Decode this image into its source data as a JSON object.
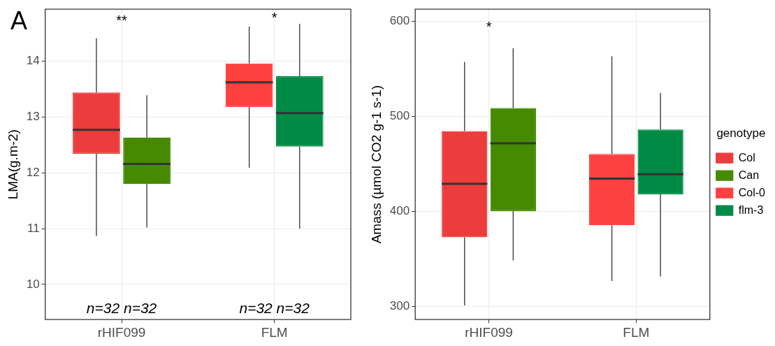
{
  "chart_data": [
    {
      "type": "box",
      "ylabel": "LMA(g.m-2)",
      "categories": [
        "rHIF099",
        "FLM"
      ],
      "ylim": [
        9.37,
        14.93
      ],
      "yticks": [
        10,
        11,
        12,
        13,
        14
      ],
      "grid": true,
      "legend": false,
      "series": [
        {
          "color": "#ec3c3c",
          "boxes": [
            {
              "low": 10.87,
              "q1": 12.34,
              "median": 12.77,
              "q3": 13.44,
              "high": 14.41
            },
            null
          ]
        },
        {
          "color": "#458a00",
          "boxes": [
            {
              "low": 11.02,
              "q1": 11.8,
              "median": 12.16,
              "q3": 12.63,
              "high": 13.39
            },
            null
          ]
        },
        {
          "color": "#ff4040",
          "boxes": [
            null,
            {
              "low": 12.09,
              "q1": 13.18,
              "median": 13.62,
              "q3": 13.96,
              "high": 14.62
            }
          ]
        },
        {
          "color": "#008b45",
          "boxes": [
            null,
            {
              "low": 11.0,
              "q1": 12.47,
              "median": 13.07,
              "q3": 13.73,
              "high": 14.67
            }
          ]
        }
      ],
      "annotations": [
        "A",
        "**",
        "*",
        "n=32 n=32",
        "n=32 n=32"
      ]
    },
    {
      "type": "box",
      "ylabel": "Amass (µmol CO2 g-1 s-1)",
      "categories": [
        "rHIF099",
        "FLM"
      ],
      "ylim": [
        285.9,
        612.7
      ],
      "yticks": [
        300,
        400,
        500,
        600
      ],
      "grid": true,
      "legend": "right",
      "legend_title": "genotype",
      "series": [
        {
          "name": "Col",
          "color": "#ec3c3c",
          "boxes": [
            {
              "low": 300.8,
              "q1": 372.5,
              "median": 428.9,
              "q3": 484.4,
              "high": 557.2
            },
            null
          ]
        },
        {
          "name": "Can",
          "color": "#458a00",
          "boxes": [
            {
              "low": 348.2,
              "q1": 400.2,
              "median": 471.6,
              "q3": 508.7,
              "high": 571.6
            },
            null
          ]
        },
        {
          "name": "Col-0",
          "color": "#ff4040",
          "boxes": [
            null,
            {
              "low": 326.5,
              "q1": 385.3,
              "median": 434.3,
              "q3": 460.3,
              "high": 563.2
            }
          ]
        },
        {
          "name": "flm-3",
          "color": "#008b45",
          "boxes": [
            null,
            {
              "low": 331.4,
              "q1": 417.8,
              "median": 438.9,
              "q3": 486.0,
              "high": 524.7
            }
          ]
        }
      ],
      "annotations": [
        "*"
      ]
    }
  ]
}
